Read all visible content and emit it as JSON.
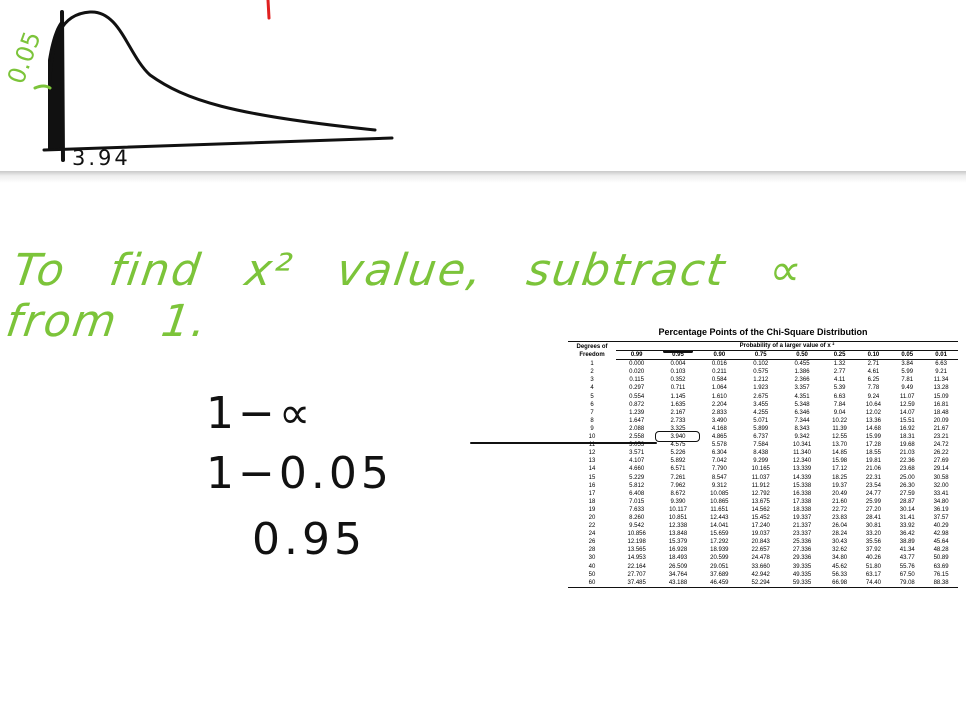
{
  "sketch": {
    "y_label": "0.05",
    "x_label": "3.94"
  },
  "sentence": {
    "words": [
      "To",
      "find",
      "x²",
      "value,",
      "subtract",
      "∝",
      "from",
      "1."
    ]
  },
  "calculation": {
    "line1": "1−∝",
    "line2": "1−0.05",
    "line3": "0.95"
  },
  "table": {
    "title": "Percentage Points of the Chi-Square Distribution",
    "df_header_line1": "Degrees of",
    "df_header_line2": "Freedom",
    "prob_header": "Probability of a larger value of x ²",
    "columns": [
      "0.99",
      "0.95",
      "0.90",
      "0.75",
      "0.50",
      "0.25",
      "0.10",
      "0.05",
      "0.01"
    ],
    "rows": [
      [
        "1",
        "0.000",
        "0.004",
        "0.016",
        "0.102",
        "0.455",
        "1.32",
        "2.71",
        "3.84",
        "6.63"
      ],
      [
        "2",
        "0.020",
        "0.103",
        "0.211",
        "0.575",
        "1.386",
        "2.77",
        "4.61",
        "5.99",
        "9.21"
      ],
      [
        "3",
        "0.115",
        "0.352",
        "0.584",
        "1.212",
        "2.366",
        "4.11",
        "6.25",
        "7.81",
        "11.34"
      ],
      [
        "4",
        "0.297",
        "0.711",
        "1.064",
        "1.923",
        "3.357",
        "5.39",
        "7.78",
        "9.49",
        "13.28"
      ],
      [
        "5",
        "0.554",
        "1.145",
        "1.610",
        "2.675",
        "4.351",
        "6.63",
        "9.24",
        "11.07",
        "15.09"
      ],
      [
        "6",
        "0.872",
        "1.635",
        "2.204",
        "3.455",
        "5.348",
        "7.84",
        "10.64",
        "12.59",
        "16.81"
      ],
      [
        "7",
        "1.239",
        "2.167",
        "2.833",
        "4.255",
        "6.346",
        "9.04",
        "12.02",
        "14.07",
        "18.48"
      ],
      [
        "8",
        "1.647",
        "2.733",
        "3.490",
        "5.071",
        "7.344",
        "10.22",
        "13.36",
        "15.51",
        "20.09"
      ],
      [
        "9",
        "2.088",
        "3.325",
        "4.168",
        "5.899",
        "8.343",
        "11.39",
        "14.68",
        "16.92",
        "21.67"
      ],
      [
        "10",
        "2.558",
        "3.940",
        "4.865",
        "6.737",
        "9.342",
        "12.55",
        "15.99",
        "18.31",
        "23.21"
      ],
      [
        "11",
        "3.053",
        "4.575",
        "5.578",
        "7.584",
        "10.341",
        "13.70",
        "17.28",
        "19.68",
        "24.72"
      ],
      [
        "12",
        "3.571",
        "5.226",
        "6.304",
        "8.438",
        "11.340",
        "14.85",
        "18.55",
        "21.03",
        "26.22"
      ],
      [
        "13",
        "4.107",
        "5.892",
        "7.042",
        "9.299",
        "12.340",
        "15.98",
        "19.81",
        "22.36",
        "27.69"
      ],
      [
        "14",
        "4.660",
        "6.571",
        "7.790",
        "10.165",
        "13.339",
        "17.12",
        "21.06",
        "23.68",
        "29.14"
      ],
      [
        "15",
        "5.229",
        "7.261",
        "8.547",
        "11.037",
        "14.339",
        "18.25",
        "22.31",
        "25.00",
        "30.58"
      ],
      [
        "16",
        "5.812",
        "7.962",
        "9.312",
        "11.912",
        "15.338",
        "19.37",
        "23.54",
        "26.30",
        "32.00"
      ],
      [
        "17",
        "6.408",
        "8.672",
        "10.085",
        "12.792",
        "16.338",
        "20.49",
        "24.77",
        "27.59",
        "33.41"
      ],
      [
        "18",
        "7.015",
        "9.390",
        "10.865",
        "13.675",
        "17.338",
        "21.60",
        "25.99",
        "28.87",
        "34.80"
      ],
      [
        "19",
        "7.633",
        "10.117",
        "11.651",
        "14.562",
        "18.338",
        "22.72",
        "27.20",
        "30.14",
        "36.19"
      ],
      [
        "20",
        "8.260",
        "10.851",
        "12.443",
        "15.452",
        "19.337",
        "23.83",
        "28.41",
        "31.41",
        "37.57"
      ],
      [
        "22",
        "9.542",
        "12.338",
        "14.041",
        "17.240",
        "21.337",
        "26.04",
        "30.81",
        "33.92",
        "40.29"
      ],
      [
        "24",
        "10.856",
        "13.848",
        "15.659",
        "19.037",
        "23.337",
        "28.24",
        "33.20",
        "36.42",
        "42.98"
      ],
      [
        "26",
        "12.198",
        "15.379",
        "17.292",
        "20.843",
        "25.336",
        "30.43",
        "35.56",
        "38.89",
        "45.64"
      ],
      [
        "28",
        "13.565",
        "16.928",
        "18.939",
        "22.657",
        "27.336",
        "32.62",
        "37.92",
        "41.34",
        "48.28"
      ],
      [
        "30",
        "14.953",
        "18.493",
        "20.599",
        "24.478",
        "29.336",
        "34.80",
        "40.26",
        "43.77",
        "50.89"
      ],
      [
        "40",
        "22.164",
        "26.509",
        "29.051",
        "33.660",
        "39.335",
        "45.62",
        "51.80",
        "55.76",
        "63.69"
      ],
      [
        "50",
        "27.707",
        "34.764",
        "37.689",
        "42.942",
        "49.335",
        "56.33",
        "63.17",
        "67.50",
        "76.15"
      ],
      [
        "60",
        "37.485",
        "43.188",
        "46.459",
        "52.294",
        "59.335",
        "66.98",
        "74.40",
        "79.08",
        "88.38"
      ]
    ]
  },
  "colors": {
    "ink_green": "#7cc43a",
    "ink_black": "#111111",
    "ink_red": "#e02020"
  }
}
